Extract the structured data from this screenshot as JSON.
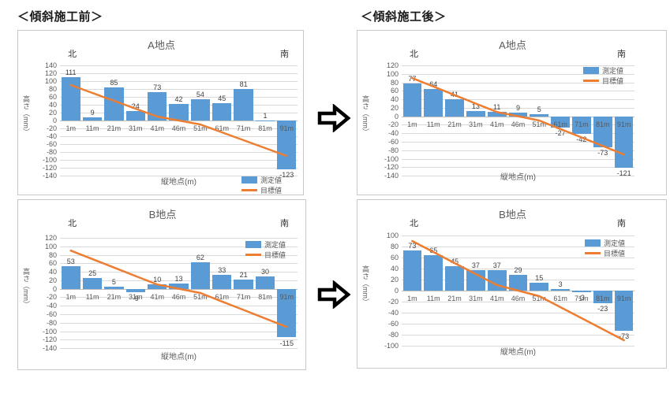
{
  "page": {
    "header_before": "＜傾斜施工前＞",
    "header_after": "＜傾斜施工後＞"
  },
  "colors": {
    "bar": "#5b9bd5",
    "line": "#ed7d31",
    "grid": "#d9d9d9",
    "zero_axis": "#bfbfbf",
    "axis_text": "#595959",
    "value_text": "#404040",
    "panel_border": "#c8c8c8",
    "arrow": "#000000"
  },
  "arrow_icon": {
    "name": "right-block-arrow",
    "count": 2
  },
  "chart_data": [
    {
      "id": "a-before",
      "type": "bar",
      "title": "A地点",
      "north_label": "北",
      "south_label": "南",
      "xlabel": "縦地点(m)",
      "ylabel": "高さ（mm）",
      "ylim": [
        -140,
        140
      ],
      "ytick_step": 20,
      "grid": true,
      "legend_position": "bottom-right",
      "categories": [
        "1m",
        "11m",
        "21m",
        "31m",
        "41m",
        "46m",
        "51m",
        "61m",
        "71m",
        "81m",
        "91m"
      ],
      "series": [
        {
          "name": "測定値",
          "type": "bar",
          "values": [
            111,
            9,
            85,
            24,
            73,
            42,
            54,
            45,
            81,
            1,
            -123
          ]
        },
        {
          "name": "目標値",
          "type": "line",
          "values": [
            90,
            70,
            50,
            30,
            10,
            0,
            -10,
            -30,
            -50,
            -70,
            -90
          ]
        }
      ]
    },
    {
      "id": "a-after",
      "type": "bar",
      "title": "A地点",
      "north_label": "北",
      "south_label": "南",
      "xlabel": "縦地点(m)",
      "ylabel": "高さ（mm）",
      "ylim": [
        -140,
        120
      ],
      "ytick_step": 20,
      "grid": true,
      "legend_position": "top-right",
      "categories": [
        "1m",
        "11m",
        "21m",
        "31m",
        "41m",
        "46m",
        "51m",
        "61m",
        "71m",
        "81m",
        "91m"
      ],
      "series": [
        {
          "name": "測定値",
          "type": "bar",
          "values": [
            77,
            64,
            41,
            13,
            11,
            9,
            5,
            -27,
            -42,
            -73,
            -121
          ]
        },
        {
          "name": "目標値",
          "type": "line",
          "values": [
            90,
            70,
            50,
            30,
            10,
            0,
            -10,
            -30,
            -50,
            -70,
            -90
          ]
        }
      ]
    },
    {
      "id": "b-before",
      "type": "bar",
      "title": "B地点",
      "north_label": "北",
      "south_label": "南",
      "xlabel": "縦地点(m)",
      "ylabel": "高さ（mm）",
      "ylim": [
        -140,
        120
      ],
      "ytick_step": 20,
      "grid": true,
      "legend_position": "top-right",
      "categories": [
        "1m",
        "11m",
        "21m",
        "31m",
        "41m",
        "46m",
        "51m",
        "61m",
        "71m",
        "81m",
        "91m"
      ],
      "series": [
        {
          "name": "測定値",
          "type": "bar",
          "values": [
            53,
            25,
            5,
            -9,
            10,
            13,
            62,
            33,
            21,
            30,
            -115
          ]
        },
        {
          "name": "目標値",
          "type": "line",
          "values": [
            90,
            70,
            50,
            30,
            10,
            0,
            -10,
            -30,
            -50,
            -70,
            -90
          ]
        }
      ]
    },
    {
      "id": "b-after",
      "type": "bar",
      "title": "B地点",
      "north_label": "北",
      "south_label": "南",
      "xlabel": "縦地点(m)",
      "ylabel": "高さ（mm）",
      "ylim": [
        -100,
        100
      ],
      "ytick_step": 20,
      "grid": true,
      "legend_position": "top-right",
      "categories": [
        "1m",
        "11m",
        "21m",
        "31m",
        "41m",
        "46m",
        "51m",
        "61m",
        "71m",
        "81m",
        "91m"
      ],
      "series": [
        {
          "name": "測定値",
          "type": "bar",
          "values": [
            73,
            65,
            45,
            37,
            37,
            29,
            15,
            3,
            -3,
            -23,
            -73
          ]
        },
        {
          "name": "目標値",
          "type": "line",
          "values": [
            90,
            70,
            50,
            30,
            10,
            0,
            -10,
            -30,
            -50,
            -70,
            -90
          ]
        }
      ]
    }
  ]
}
